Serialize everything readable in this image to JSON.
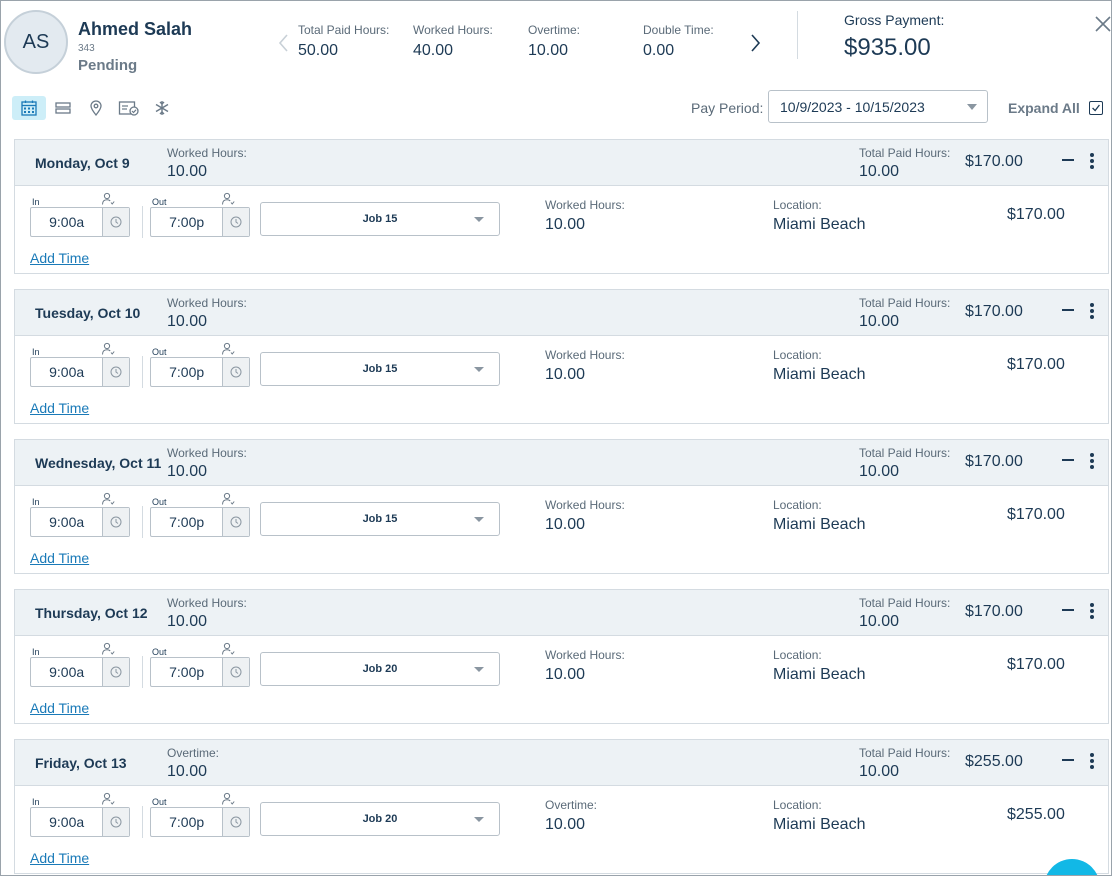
{
  "employee": {
    "initials": "AS",
    "name": "Ahmed Salah",
    "id": "343",
    "status": "Pending"
  },
  "stats": [
    {
      "label": "Total Paid Hours:",
      "value": "50.00"
    },
    {
      "label": "Worked Hours:",
      "value": "40.00"
    },
    {
      "label": "Overtime:",
      "value": "10.00"
    },
    {
      "label": "Double Time:",
      "value": "0.00"
    }
  ],
  "gross": {
    "label": "Gross Payment:",
    "value": "$935.00"
  },
  "toolbar": {
    "icons": [
      "calendar-icon",
      "list-icon",
      "location-pin-icon",
      "card-check-icon",
      "snowflake-icon"
    ],
    "pay_period_label": "Pay Period:",
    "pay_period_value": "10/9/2023 - 10/15/2023",
    "expand_all_label": "Expand All",
    "expand_all_checked": true
  },
  "colors": {
    "accent": "#12b8e6",
    "link": "#1a7ab8",
    "text": "#1d3a55",
    "header_bg": "#edf2f5"
  },
  "days": [
    {
      "title": "Monday, Oct 9",
      "h_label": "Worked Hours:",
      "h_value": "10.00",
      "tp_label": "Total Paid Hours:",
      "tp_value": "10.00",
      "amount": "$170.00",
      "in_label": "In",
      "in_time": "9:00a",
      "out_label": "Out",
      "out_time": "7:00p",
      "job": "Job 15",
      "r_label": "Worked Hours:",
      "r_value": "10.00",
      "loc_label": "Location:",
      "loc_value": "Miami Beach",
      "r_amount": "$170.00",
      "add_time": "Add Time"
    },
    {
      "title": "Tuesday, Oct 10",
      "h_label": "Worked Hours:",
      "h_value": "10.00",
      "tp_label": "Total Paid Hours:",
      "tp_value": "10.00",
      "amount": "$170.00",
      "in_label": "In",
      "in_time": "9:00a",
      "out_label": "Out",
      "out_time": "7:00p",
      "job": "Job 15",
      "r_label": "Worked Hours:",
      "r_value": "10.00",
      "loc_label": "Location:",
      "loc_value": "Miami Beach",
      "r_amount": "$170.00",
      "add_time": "Add Time"
    },
    {
      "title": "Wednesday, Oct 11",
      "h_label": "Worked Hours:",
      "h_value": "10.00",
      "tp_label": "Total Paid Hours:",
      "tp_value": "10.00",
      "amount": "$170.00",
      "in_label": "In",
      "in_time": "9:00a",
      "out_label": "Out",
      "out_time": "7:00p",
      "job": "Job 15",
      "r_label": "Worked Hours:",
      "r_value": "10.00",
      "loc_label": "Location:",
      "loc_value": "Miami Beach",
      "r_amount": "$170.00",
      "add_time": "Add Time"
    },
    {
      "title": "Thursday, Oct 12",
      "h_label": "Worked Hours:",
      "h_value": "10.00",
      "tp_label": "Total Paid Hours:",
      "tp_value": "10.00",
      "amount": "$170.00",
      "in_label": "In",
      "in_time": "9:00a",
      "out_label": "Out",
      "out_time": "7:00p",
      "job": "Job 20",
      "r_label": "Worked Hours:",
      "r_value": "10.00",
      "loc_label": "Location:",
      "loc_value": "Miami Beach",
      "r_amount": "$170.00",
      "add_time": "Add Time"
    },
    {
      "title": "Friday, Oct 13",
      "h_label": "Overtime:",
      "h_value": "10.00",
      "tp_label": "Total Paid Hours:",
      "tp_value": "10.00",
      "amount": "$255.00",
      "in_label": "In",
      "in_time": "9:00a",
      "out_label": "Out",
      "out_time": "7:00p",
      "job": "Job 20",
      "r_label": "Overtime:",
      "r_value": "10.00",
      "loc_label": "Location:",
      "loc_value": "Miami Beach",
      "r_amount": "$255.00",
      "add_time": "Add Time"
    }
  ]
}
